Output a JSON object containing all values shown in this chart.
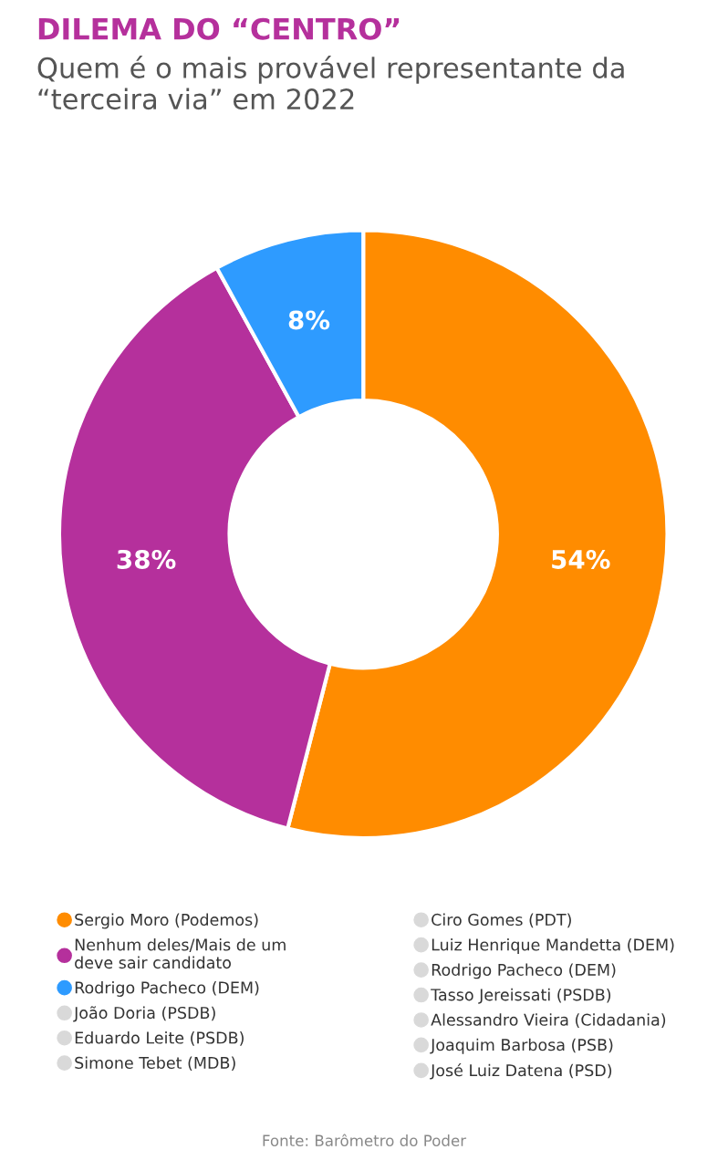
{
  "chart_data": {
    "type": "donut",
    "title": "DILEMA DO “CENTRO”",
    "subtitle": "Quem é o mais provável representante da “terceira via” em 2022",
    "categories": [
      "Sergio Moro (Podemos)",
      "Nenhum deles/Mais de um deve sair candidato",
      "Rodrigo Pacheco (DEM)",
      "João Doria (PSDB)",
      "Eduardo Leite (PSDB)",
      "Simone Tebet (MDB)",
      "Ciro Gomes (PDT)",
      "Luiz Henrique Mandetta (DEM)",
      " Rodrigo Pacheco (DEM)",
      "Tasso Jereissati (PSDB)",
      "Alessandro Vieira (Cidadania)",
      "Joaquim Barbosa (PSB)",
      "José Luiz Datena (PSD)"
    ],
    "values": [
      54,
      38,
      8,
      null,
      null,
      null,
      null,
      null,
      null,
      null,
      null,
      null,
      null
    ],
    "value_labels": [
      "54%",
      "38%",
      "8%",
      null,
      null,
      null,
      null,
      null,
      null,
      null,
      null,
      null,
      null
    ],
    "colors": [
      "#ff8c00",
      "#b5309c",
      "#2e9bff",
      "#d9d9d9",
      "#d9d9d9",
      "#d9d9d9",
      "#d9d9d9",
      "#d9d9d9",
      "#d9d9d9",
      "#d9d9d9",
      "#d9d9d9",
      "#d9d9d9",
      "#d9d9d9"
    ],
    "legend": "bottom",
    "annotations": [
      "Fonte: Barômetro do Poder"
    ]
  }
}
